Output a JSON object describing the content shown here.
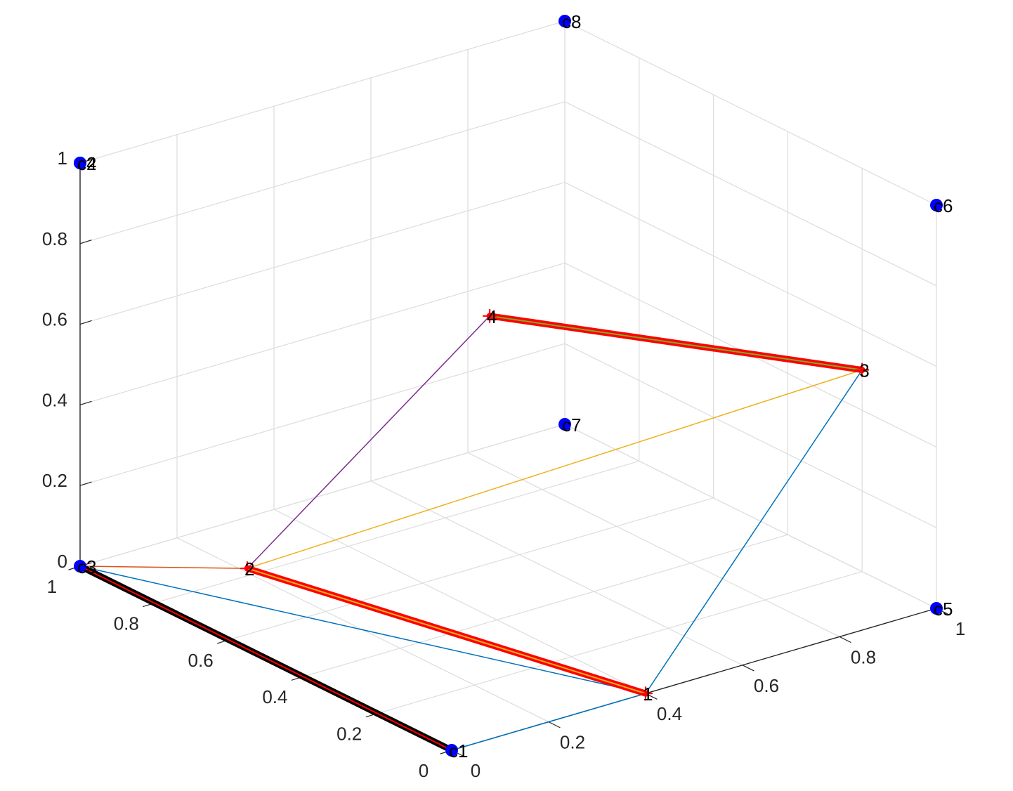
{
  "chart_data": {
    "type": "scatter3d",
    "title": "",
    "xlabel": "",
    "ylabel": "",
    "zlabel": "",
    "xlim": [
      0,
      1
    ],
    "ylim": [
      0,
      1
    ],
    "zlim": [
      0,
      1
    ],
    "grid": true,
    "x_ticks": [
      "0",
      "0.2",
      "0.4",
      "0.6",
      "0.8",
      "1"
    ],
    "y_ticks": [
      "0",
      "0.2",
      "0.4",
      "0.6",
      "0.8",
      "1"
    ],
    "z_ticks": [
      "0",
      "0.2",
      "0.4",
      "0.6",
      "0.8",
      "1"
    ],
    "corner_points": {
      "color": "#0000ff",
      "points": [
        {
          "label": "c1",
          "x": 0,
          "y": 0,
          "z": 0
        },
        {
          "label": "c2",
          "x": 0,
          "y": 1,
          "z": 1
        },
        {
          "label": "c3",
          "x": 0,
          "y": 1,
          "z": 0
        },
        {
          "label": "c4",
          "x": 0,
          "y": 1,
          "z": 1
        },
        {
          "label": "c5",
          "x": 1,
          "y": 0,
          "z": 0
        },
        {
          "label": "c6",
          "x": 1,
          "y": 0,
          "z": 1
        },
        {
          "label": "c7",
          "x": 1,
          "y": 1,
          "z": 0
        },
        {
          "label": "c8",
          "x": 1,
          "y": 1,
          "z": 1
        }
      ]
    },
    "path_points": {
      "color": "#ff0000",
      "points": [
        {
          "label": "1",
          "x": 0.4,
          "y": 0.0,
          "z": 0.0
        },
        {
          "label": "2",
          "x": 0.0,
          "y": 0.55,
          "z": 0.2
        },
        {
          "label": "3",
          "x": 1.0,
          "y": 0.2,
          "z": 0.5
        },
        {
          "label": "4",
          "x": 0.5,
          "y": 0.55,
          "z": 0.65
        }
      ]
    },
    "segments": [
      {
        "from": "c1",
        "to": "1",
        "color": "#0072bd",
        "width": 1.5
      },
      {
        "from": "c3",
        "to": "1",
        "color": "#0072bd",
        "width": 1.5
      },
      {
        "from": "1",
        "to": "3",
        "color": "#0072bd",
        "width": 1.5
      },
      {
        "from": "c3",
        "to": "2",
        "color": "#d95319",
        "width": 1.5
      },
      {
        "from": "2",
        "to": "3",
        "color": "#edb120",
        "width": 1.5
      },
      {
        "from": "2",
        "to": "4",
        "color": "#7e2f8e",
        "width": 1.5
      },
      {
        "from": "c1",
        "to": "c3",
        "color": "#000000",
        "width": 9,
        "highlight": "#ff0000"
      },
      {
        "from": "1",
        "to": "2",
        "color": "#ff0000",
        "width": 9,
        "highlight": "#edb120"
      },
      {
        "from": "3",
        "to": "4",
        "color": "#ff0000",
        "width": 9,
        "highlight": "#77ac30"
      }
    ]
  }
}
